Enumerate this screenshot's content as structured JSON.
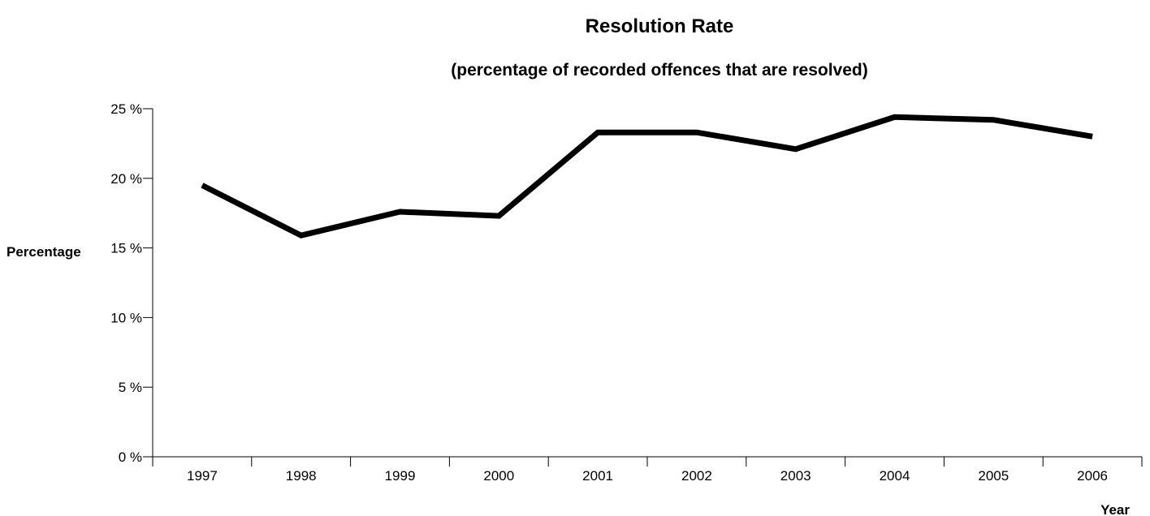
{
  "chart_data": {
    "type": "line",
    "title": "Resolution Rate",
    "subtitle": "(percentage of recorded offences that are resolved)",
    "xlabel": "Year",
    "ylabel": "Percentage",
    "categories": [
      "1997",
      "1998",
      "1999",
      "2000",
      "2001",
      "2002",
      "2003",
      "2004",
      "2005",
      "2006"
    ],
    "series": [
      {
        "values": [
          19.5,
          15.9,
          17.6,
          17.3,
          23.3,
          23.3,
          22.1,
          24.4,
          24.2,
          23.0
        ],
        "color": "#000000"
      }
    ],
    "ylim": [
      0,
      25
    ],
    "yticks": [
      {
        "value": 0,
        "label": "0 %"
      },
      {
        "value": 5,
        "label": "5 %"
      },
      {
        "value": 10,
        "label": "10 %"
      },
      {
        "value": 15,
        "label": "15 %"
      },
      {
        "value": 20,
        "label": "20 %"
      },
      {
        "value": 25,
        "label": "25 %"
      }
    ],
    "grid": false,
    "legend": "none"
  }
}
